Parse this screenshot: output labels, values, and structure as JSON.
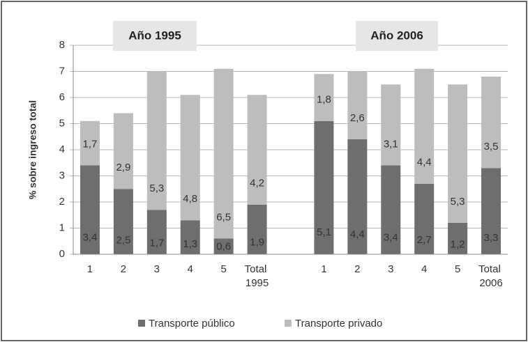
{
  "chart_data": {
    "type": "stacked_bar",
    "y_label": "% sobre ingreso total",
    "annotations": [
      "Año 1995",
      "Año 2006"
    ],
    "categories": [
      "1",
      "2",
      "3",
      "4",
      "5",
      "Total 1995",
      null,
      "1",
      "2",
      "3",
      "4",
      "5",
      "Total 2006"
    ],
    "series": [
      {
        "name": "Transporte público",
        "color": "#6e6e6e",
        "values": [
          3.4,
          2.5,
          1.7,
          1.3,
          0.6,
          1.9,
          null,
          5.1,
          4.4,
          3.4,
          2.7,
          1.2,
          3.3
        ],
        "value_labels": [
          "3,4",
          "2,5",
          "1,7",
          "1,3",
          "0,6",
          "1,9",
          null,
          "5,1",
          "4,4",
          "3,4",
          "2,7",
          "1,2",
          "3,3"
        ]
      },
      {
        "name": "Transporte privado",
        "color": "#bdbdbd",
        "values": [
          1.7,
          2.9,
          5.3,
          4.8,
          6.5,
          4.2,
          null,
          1.8,
          2.6,
          3.1,
          4.4,
          5.3,
          3.5
        ],
        "value_labels": [
          "1,7",
          "2,9",
          "5,3",
          "4,8",
          "6,5",
          "4,2",
          null,
          "1,8",
          "2,6",
          "3,1",
          "4,4",
          "5,3",
          "3,5"
        ]
      }
    ],
    "ylim": [
      0,
      8
    ],
    "yticks": [
      0,
      1,
      2,
      3,
      4,
      5,
      6,
      7,
      8
    ],
    "grid": true,
    "legend": "bottom"
  }
}
